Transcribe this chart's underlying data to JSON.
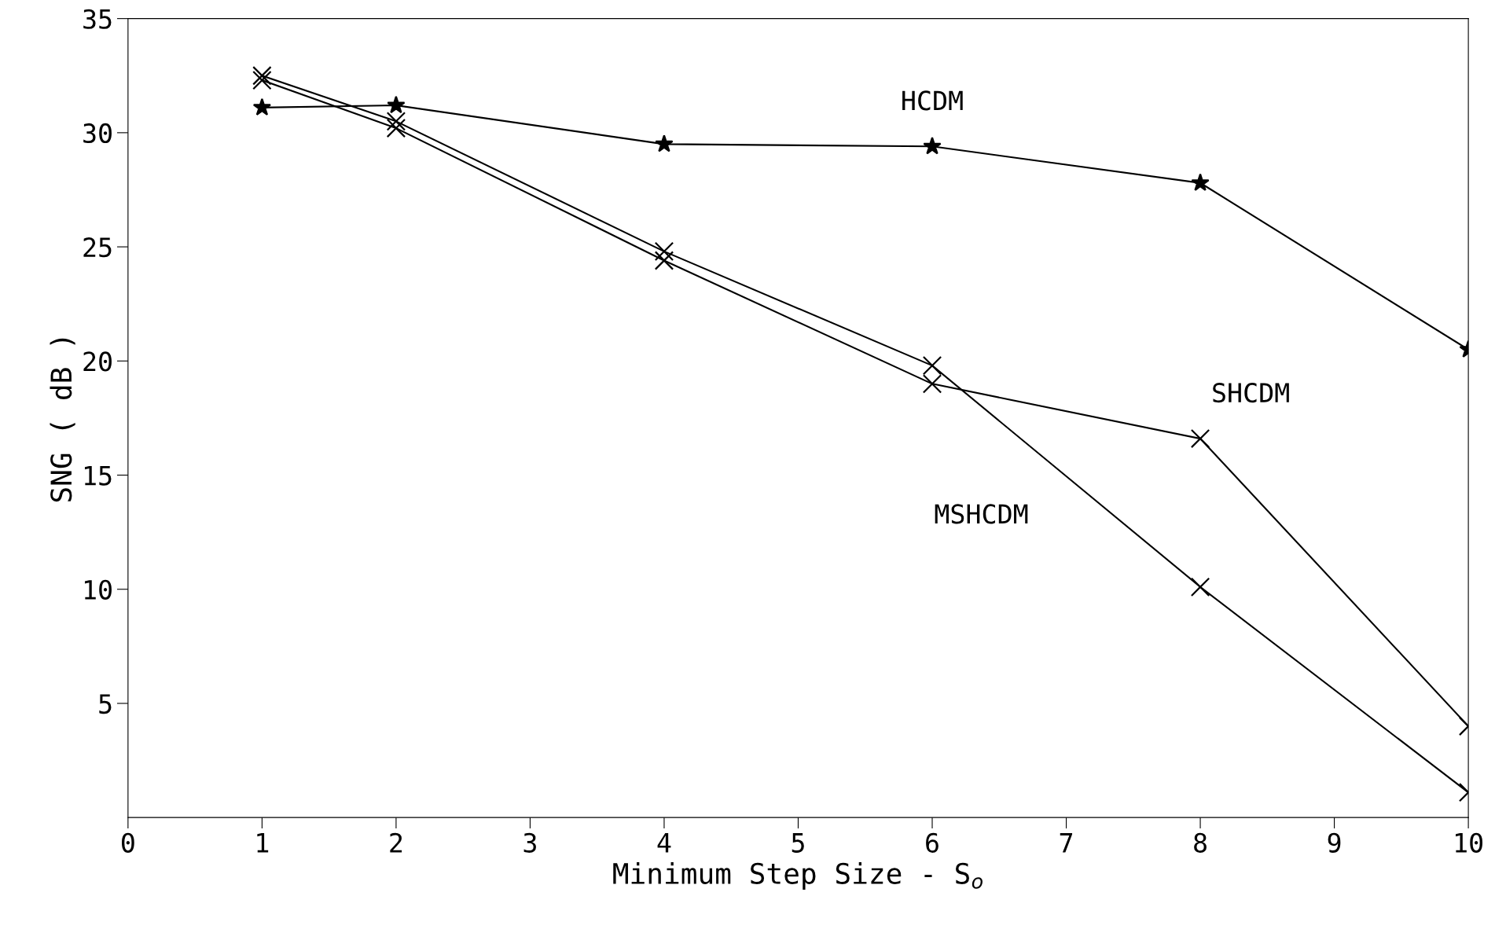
{
  "chart_data": {
    "type": "line",
    "xlabel": "Minimum Step Size - S$_{o}$",
    "ylabel": "SNG ( dB )",
    "x": [
      1,
      2,
      4,
      6,
      8,
      10
    ],
    "series": [
      {
        "name": "HCDM",
        "values": [
          31.1,
          31.2,
          29.5,
          29.4,
          27.8,
          20.5
        ],
        "color": "#000000",
        "marker": "star"
      },
      {
        "name": "SHCDM",
        "values": [
          32.3,
          30.2,
          24.4,
          19.0,
          16.6,
          4.0
        ],
        "color": "#000000",
        "marker": "cross"
      },
      {
        "name": "MSHCDM",
        "values": [
          32.5,
          30.5,
          24.8,
          19.8,
          10.1,
          1.1
        ],
        "color": "#000000",
        "marker": "cross"
      }
    ],
    "xlim": [
      0,
      10
    ],
    "xticks": [
      0,
      1,
      2,
      3,
      4,
      5,
      6,
      7,
      8,
      9,
      10
    ],
    "ylim": [
      0,
      35
    ],
    "yticks": [
      5,
      10,
      15,
      20,
      25,
      30,
      35
    ],
    "grid": false,
    "legend": false,
    "line_style": "solid"
  }
}
